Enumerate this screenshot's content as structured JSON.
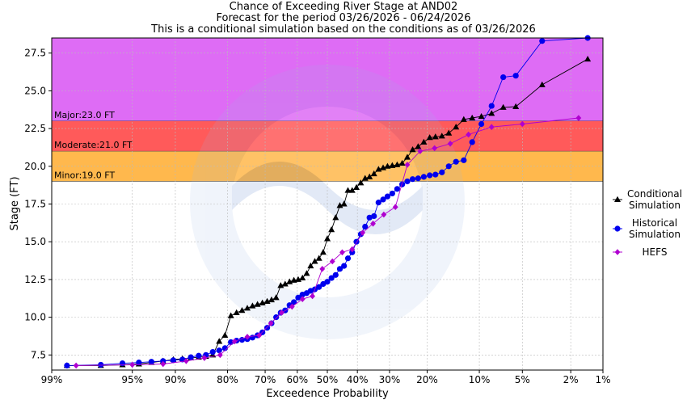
{
  "chart_data": {
    "type": "line",
    "title_lines": [
      "Chance of Exceeding River Stage at AND02",
      "Forecast for the period 03/26/2026 - 06/24/2026",
      "This is a conditional simulation based on the conditions as of 03/26/2026"
    ],
    "xlabel": "Exceedence Probability",
    "ylabel": "Stage (FT)",
    "x_scale": "normal-probability, reversed (99% left to 1% right)",
    "xlim": [
      99,
      1
    ],
    "ylim": [
      6.5,
      27.5
    ],
    "x_ticks": [
      99,
      95,
      90,
      80,
      70,
      60,
      50,
      40,
      30,
      20,
      10,
      5,
      2,
      1
    ],
    "x_tick_labels": [
      "99%",
      "95%",
      "90%",
      "80%",
      "70%",
      "60%",
      "50%",
      "40%",
      "30%",
      "20%",
      "10%",
      "5%",
      "2%",
      "1%"
    ],
    "y_ticks": [
      7.5,
      10.0,
      12.5,
      15.0,
      17.5,
      20.0,
      22.5,
      25.0,
      27.5
    ],
    "y_tick_labels": [
      "7.5",
      "10.0",
      "12.5",
      "15.0",
      "17.5",
      "20.0",
      "22.5",
      "25.0",
      "27.5"
    ],
    "flood_bands": [
      {
        "name": "Minor",
        "label": "Minor:19.0 FT",
        "from": 19.0,
        "to": 21.0,
        "color": "#ffb84d"
      },
      {
        "name": "Moderate",
        "label": "Moderate:21.0 FT",
        "from": 21.0,
        "to": 23.0,
        "color": "#ff5a5a"
      },
      {
        "name": "Major",
        "label": "Major:23.0 FT",
        "from": 23.0,
        "to": 28.5,
        "color": "#de6cf5"
      }
    ],
    "series": [
      {
        "name": "Conditional Simulation",
        "legend_lines": [
          "Conditional",
          "Simulation"
        ],
        "marker": "triangle",
        "color": "#000000",
        "x": [
          98.6,
          97.2,
          95.8,
          94.4,
          93.1,
          91.7,
          90.3,
          88.9,
          87.5,
          86.1,
          84.7,
          83.3,
          81.9,
          80.6,
          79.2,
          77.8,
          76.4,
          75.0,
          73.6,
          72.2,
          70.8,
          69.4,
          68.1,
          66.7,
          65.3,
          63.9,
          62.5,
          61.1,
          59.7,
          58.3,
          56.9,
          55.6,
          54.2,
          52.8,
          51.4,
          50.0,
          48.6,
          47.2,
          45.8,
          44.4,
          43.1,
          41.7,
          40.3,
          38.9,
          37.5,
          36.1,
          34.7,
          33.3,
          31.9,
          30.6,
          29.2,
          27.8,
          26.4,
          25.0,
          23.6,
          22.2,
          20.8,
          19.4,
          18.1,
          16.7,
          15.3,
          13.9,
          12.5,
          11.1,
          9.7,
          8.3,
          6.9,
          5.6,
          3.5,
          1.4
        ],
        "y": [
          6.8,
          6.8,
          6.85,
          6.9,
          7.0,
          7.1,
          7.2,
          7.25,
          7.3,
          7.35,
          7.4,
          7.5,
          8.4,
          8.8,
          10.1,
          10.3,
          10.45,
          10.6,
          10.75,
          10.85,
          10.95,
          11.05,
          11.15,
          11.3,
          12.1,
          12.2,
          12.35,
          12.45,
          12.5,
          12.6,
          12.9,
          13.4,
          13.7,
          13.9,
          14.3,
          15.2,
          15.8,
          16.6,
          17.4,
          17.5,
          18.4,
          18.4,
          18.6,
          18.9,
          19.2,
          19.3,
          19.5,
          19.8,
          19.9,
          20.0,
          20.05,
          20.1,
          20.2,
          20.6,
          21.1,
          21.3,
          21.6,
          21.9,
          21.95,
          22.0,
          22.2,
          22.6,
          23.1,
          23.2,
          23.3,
          23.5,
          23.9,
          23.95,
          25.4,
          27.1
        ]
      },
      {
        "name": "Historical Simulation",
        "legend_lines": [
          "Historical",
          "Simulation"
        ],
        "marker": "circle",
        "color": "#0000ee",
        "x": [
          98.6,
          97.2,
          95.8,
          94.4,
          93.1,
          91.7,
          90.3,
          88.9,
          87.5,
          86.1,
          84.7,
          83.3,
          81.9,
          80.6,
          79.2,
          77.8,
          76.4,
          75.0,
          73.6,
          72.2,
          70.8,
          69.4,
          68.1,
          66.7,
          65.3,
          63.9,
          62.5,
          61.1,
          59.7,
          58.3,
          56.9,
          55.6,
          54.2,
          52.8,
          51.4,
          50.0,
          48.6,
          47.2,
          45.8,
          44.4,
          43.1,
          41.7,
          40.3,
          38.9,
          37.5,
          36.1,
          34.7,
          33.3,
          31.9,
          30.6,
          29.2,
          27.8,
          26.4,
          25.0,
          23.6,
          22.2,
          20.8,
          19.4,
          18.1,
          16.7,
          15.3,
          13.9,
          12.5,
          11.1,
          9.7,
          8.3,
          6.9,
          5.6,
          3.5,
          1.4
        ],
        "y": [
          6.8,
          6.85,
          6.95,
          7.0,
          7.05,
          7.1,
          7.15,
          7.2,
          7.35,
          7.45,
          7.5,
          7.7,
          7.8,
          7.95,
          8.35,
          8.45,
          8.5,
          8.55,
          8.65,
          8.8,
          9.0,
          9.3,
          9.6,
          10.0,
          10.3,
          10.45,
          10.8,
          11.0,
          11.3,
          11.5,
          11.6,
          11.75,
          11.85,
          12.0,
          12.2,
          12.35,
          12.6,
          12.8,
          13.2,
          13.4,
          13.9,
          14.3,
          15.0,
          15.5,
          16.0,
          16.6,
          16.7,
          17.6,
          17.8,
          18.0,
          18.2,
          18.5,
          18.8,
          19.0,
          19.15,
          19.2,
          19.3,
          19.4,
          19.45,
          19.6,
          20.0,
          20.3,
          20.4,
          21.6,
          22.8,
          24.0,
          25.9,
          26.0,
          28.3,
          28.5
        ]
      },
      {
        "name": "HEFS",
        "legend_lines": [
          "HEFS"
        ],
        "marker": "diamond",
        "color": "#b000d0",
        "x": [
          98.3,
          95.0,
          91.7,
          88.3,
          85.0,
          81.7,
          78.3,
          75.0,
          71.7,
          68.3,
          65.0,
          61.7,
          58.3,
          55.0,
          51.7,
          48.3,
          45.0,
          41.7,
          38.3,
          35.0,
          31.7,
          28.3,
          25.0,
          21.7,
          18.3,
          15.0,
          11.7,
          8.3,
          5.0,
          1.7
        ],
        "y": [
          6.8,
          6.85,
          6.9,
          7.1,
          7.3,
          7.5,
          8.4,
          8.7,
          8.8,
          9.6,
          10.3,
          10.7,
          11.2,
          11.4,
          13.2,
          13.7,
          14.3,
          14.5,
          15.6,
          16.2,
          16.8,
          17.3,
          20.1,
          21.0,
          21.2,
          21.5,
          22.1,
          22.6,
          22.8,
          23.2
        ]
      }
    ],
    "legend_position": "right",
    "grid": true
  }
}
